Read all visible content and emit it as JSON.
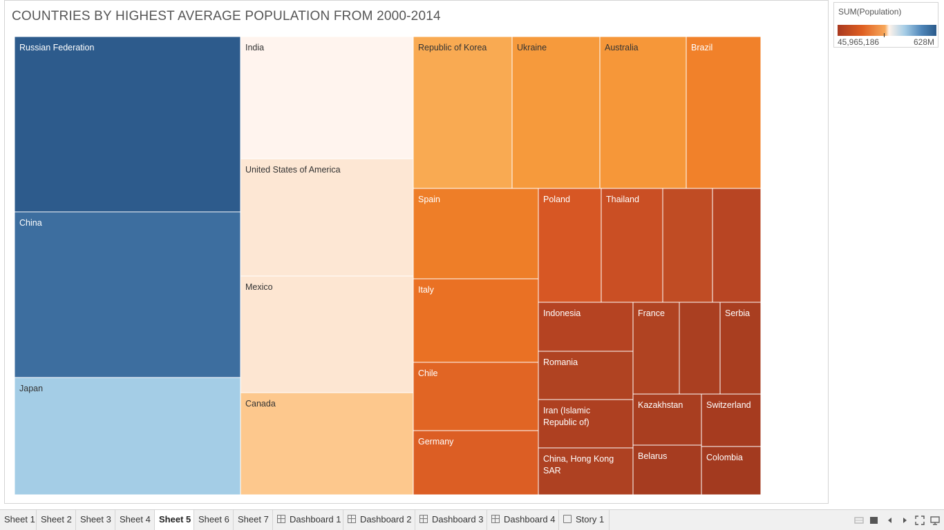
{
  "chart_data": {
    "type": "treemap",
    "title": "COUNTRIES BY HIGHEST AVERAGE POPULATION FROM 2000-2014",
    "measure": "SUM(Population)",
    "color_scale": {
      "min_label": "45,965,186",
      "max_label": "628M",
      "diverging": true
    },
    "cells": [
      {
        "label": "Russian Federation",
        "color": "#2d5b8c"
      },
      {
        "label": "China",
        "color": "#3d6e9f"
      },
      {
        "label": "Japan",
        "color": "#a4cde6"
      },
      {
        "label": "India",
        "color": "#fff4ee"
      },
      {
        "label": "United States of America",
        "color": "#fde7d4"
      },
      {
        "label": "Mexico",
        "color": "#fde6d2"
      },
      {
        "label": "Canada",
        "color": "#fdc88d"
      },
      {
        "label": "Republic of Korea",
        "color": "#f9aa52"
      },
      {
        "label": "Ukraine",
        "color": "#f69a3c"
      },
      {
        "label": "Australia",
        "color": "#f69739"
      },
      {
        "label": "Brazil",
        "color": "#f1812a"
      },
      {
        "label": "Spain",
        "color": "#ee7e28"
      },
      {
        "label": "Poland",
        "color": "#d75724"
      },
      {
        "label": "Thailand",
        "color": "#ca4f24"
      },
      {
        "label": "",
        "color": "#c04c24"
      },
      {
        "label": "",
        "color": "#b84523"
      },
      {
        "label": "Italy",
        "color": "#ea7124"
      },
      {
        "label": "Indonesia",
        "color": "#b54322"
      },
      {
        "label": "France",
        "color": "#b04322"
      },
      {
        "label": "",
        "color": "#aa3f21"
      },
      {
        "label": "Serbia",
        "color": "#a93e20"
      },
      {
        "label": "Chile",
        "color": "#e16524"
      },
      {
        "label": "Romania",
        "color": "#b04322"
      },
      {
        "label": "Kazakhstan",
        "color": "#a93e20"
      },
      {
        "label": "Switzerland",
        "color": "#a63b1f"
      },
      {
        "label": "Iran (Islamic Republic of)",
        "color": "#ae4021"
      },
      {
        "label": "Germany",
        "color": "#dc5e24"
      },
      {
        "label": "Belarus",
        "color": "#a63c20"
      },
      {
        "label": "Colombia",
        "color": "#a33a1f"
      },
      {
        "label": "China, Hong Kong SAR",
        "color": "#ae4122"
      }
    ]
  },
  "tabs": [
    {
      "label": "Sheet 1",
      "icon": ""
    },
    {
      "label": "Sheet 2",
      "icon": ""
    },
    {
      "label": "Sheet 3",
      "icon": ""
    },
    {
      "label": "Sheet 4",
      "icon": ""
    },
    {
      "label": "Sheet 5",
      "icon": "",
      "active": true
    },
    {
      "label": "Sheet 6",
      "icon": ""
    },
    {
      "label": "Sheet 7",
      "icon": ""
    },
    {
      "label": "Dashboard 1",
      "icon": "dashboard-icon"
    },
    {
      "label": "Dashboard 2",
      "icon": "dashboard-icon"
    },
    {
      "label": "Dashboard 3",
      "icon": "dashboard-icon"
    },
    {
      "label": "Dashboard 4",
      "icon": "dashboard-icon"
    },
    {
      "label": "Story 1",
      "icon": "story-icon"
    }
  ],
  "controls": [
    "show-sheets-icon",
    "filmstrip-icon",
    "prev-sheet-icon",
    "next-sheet-icon",
    "fullscreen-icon",
    "presentation-icon"
  ]
}
